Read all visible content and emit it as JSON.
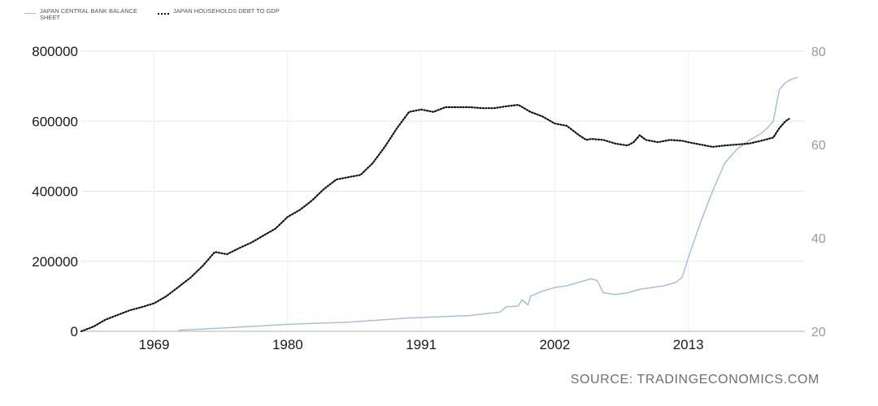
{
  "chart_data": {
    "type": "line",
    "title": "",
    "xlabel": "",
    "x_ticks": [
      "1969",
      "1980",
      "1991",
      "2002",
      "2013"
    ],
    "xlim": [
      1963,
      2022.6
    ],
    "y_left": {
      "lim": [
        0,
        800000
      ],
      "ticks": [
        "0",
        "200000",
        "400000",
        "600000",
        "800000"
      ]
    },
    "y_right": {
      "lim": [
        20,
        80
      ],
      "ticks": [
        "20",
        "40",
        "60",
        "80"
      ]
    },
    "grid": true,
    "legend": "top-left",
    "series": [
      {
        "name": "JAPAN CENTRAL BANK BALANCE SHEET",
        "axis": "left",
        "color": "#9fbbe0",
        "style": "solid",
        "x": [
          1971.0,
          1975.0,
          1980.0,
          1985.0,
          1990.0,
          1995.0,
          1997.5,
          1998.0,
          1999.0,
          1999.3,
          1999.8,
          2000.0,
          2001.0,
          2002.0,
          2003.0,
          2004.0,
          2005.0,
          2005.5,
          2006.0,
          2007.0,
          2008.0,
          2009.0,
          2010.0,
          2011.0,
          2012.0,
          2012.5,
          2013.0,
          2013.5,
          2014.0,
          2015.0,
          2016.0,
          2017.0,
          2018.0,
          2019.0,
          2019.5,
          2020.0,
          2020.5,
          2021.0,
          2021.5,
          2022.0
        ],
        "values": [
          3000,
          10000,
          20000,
          26000,
          38000,
          45000,
          55000,
          70000,
          72000,
          90000,
          75000,
          100000,
          115000,
          125000,
          130000,
          140000,
          150000,
          145000,
          110000,
          105000,
          110000,
          120000,
          125000,
          130000,
          140000,
          155000,
          210000,
          260000,
          310000,
          400000,
          480000,
          520000,
          545000,
          565000,
          580000,
          600000,
          690000,
          710000,
          720000,
          725000
        ]
      },
      {
        "name": "JAPAN HOUSEHOLDS DEBT TO GDP",
        "axis": "right",
        "color": "#111111",
        "style": "dotted",
        "x": [
          1963.0,
          1964.0,
          1965.0,
          1966.0,
          1967.0,
          1968.0,
          1969.0,
          1970.0,
          1971.0,
          1972.0,
          1973.0,
          1974.0,
          1975.0,
          1976.0,
          1977.0,
          1978.0,
          1979.0,
          1980.0,
          1981.0,
          1982.0,
          1983.0,
          1984.0,
          1985.0,
          1986.0,
          1987.0,
          1988.0,
          1989.0,
          1990.0,
          1991.0,
          1992.0,
          1993.0,
          1994.0,
          1995.0,
          1996.0,
          1997.0,
          1998.0,
          1999.0,
          2000.0,
          2001.0,
          2002.0,
          2003.0,
          2004.0,
          2004.6,
          2005.0,
          2006.0,
          2007.0,
          2008.0,
          2008.5,
          2009.0,
          2009.5,
          2010.5,
          2011.5,
          2012.5,
          2013.0,
          2014.0,
          2015.0,
          2016.0,
          2017.0,
          2018.0,
          2019.0,
          2020.0,
          2020.5,
          2021.0,
          2021.3
        ],
        "values": [
          20.0,
          21.0,
          22.5,
          23.5,
          24.5,
          25.2,
          26.0,
          27.5,
          29.5,
          31.5,
          34.0,
          37.0,
          36.5,
          37.8,
          39.0,
          40.5,
          42.0,
          44.5,
          46.0,
          48.0,
          50.5,
          52.5,
          53.0,
          53.5,
          56.0,
          59.5,
          63.5,
          67.0,
          67.5,
          67.0,
          68.0,
          68.0,
          68.0,
          67.8,
          67.8,
          68.2,
          68.5,
          67.0,
          66.0,
          64.5,
          64.0,
          62.0,
          61.0,
          61.2,
          61.0,
          60.2,
          59.8,
          60.5,
          62.0,
          61.0,
          60.5,
          61.0,
          60.8,
          60.5,
          60.0,
          59.5,
          59.8,
          60.0,
          60.2,
          60.8,
          61.5,
          63.5,
          65.0,
          65.5
        ]
      }
    ],
    "source": "SOURCE: TRADINGECONOMICS.COM"
  }
}
